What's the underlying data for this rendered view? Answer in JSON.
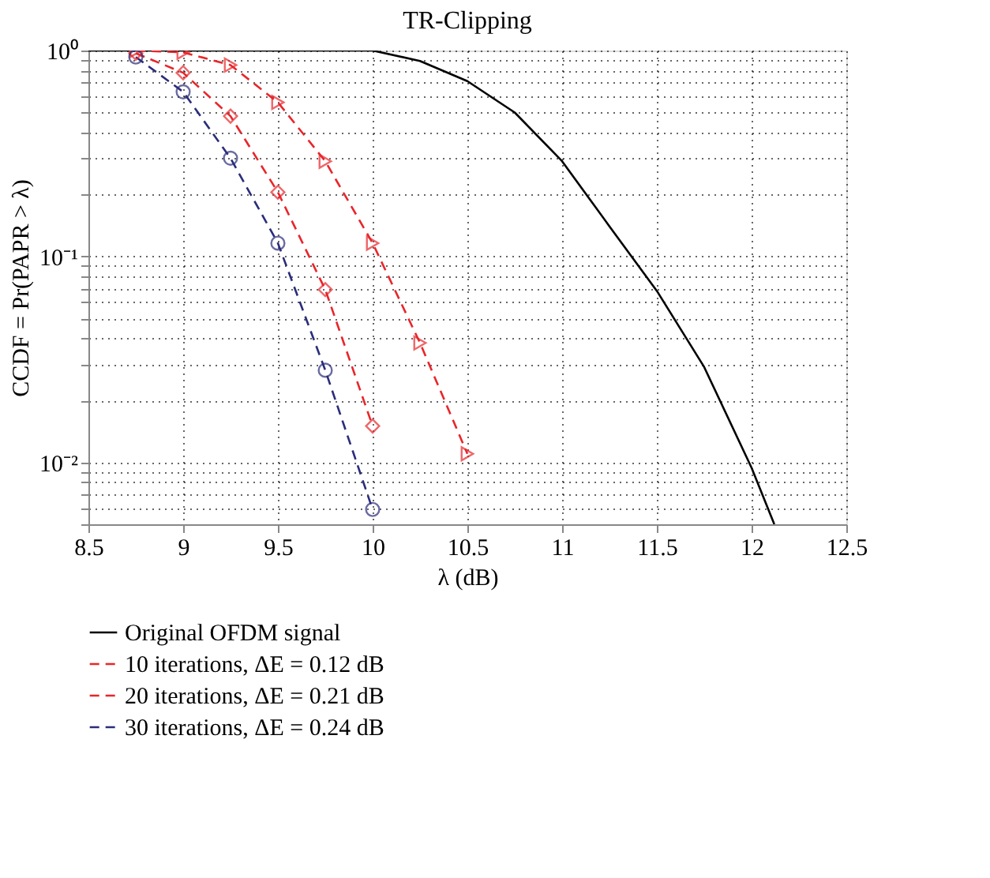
{
  "chart_data": {
    "type": "line",
    "title": "TR-Clipping",
    "xlabel": "λ (dB)",
    "ylabel": "CCDF = Pr(PAPR > λ)",
    "log": "y",
    "grid": true,
    "legend": "bottom",
    "xlim": [
      8.5,
      12.5
    ],
    "xticks": [
      8.5,
      9,
      9.5,
      10,
      10.5,
      11,
      11.5,
      12,
      12.5
    ],
    "ylim": [
      0.005,
      1
    ],
    "yticks": [
      {
        "value": 1,
        "label": "10⁰"
      },
      {
        "value": 0.9,
        "label": null
      },
      {
        "value": 0.8,
        "label": null
      },
      {
        "value": 0.7,
        "label": null
      },
      {
        "value": 0.6,
        "label": null
      },
      {
        "value": 0.5,
        "label": null
      },
      {
        "value": 0.4,
        "label": null
      },
      {
        "value": 0.3,
        "label": null
      },
      {
        "value": 0.2,
        "label": null
      },
      {
        "value": 0.1,
        "label": "10⁻¹"
      },
      {
        "value": 0.09,
        "label": null
      },
      {
        "value": 0.08,
        "label": null
      },
      {
        "value": 0.07,
        "label": null
      },
      {
        "value": 0.06,
        "label": null
      },
      {
        "value": 0.05,
        "label": null
      },
      {
        "value": 0.04,
        "label": null
      },
      {
        "value": 0.03,
        "label": null
      },
      {
        "value": 0.02,
        "label": null
      },
      {
        "value": 0.01,
        "label": "10⁻²"
      },
      {
        "value": 0.009,
        "label": null
      },
      {
        "value": 0.008,
        "label": null
      },
      {
        "value": 0.007,
        "label": null
      },
      {
        "value": 0.006,
        "label": null
      },
      {
        "value": 0.005,
        "label": null
      }
    ],
    "series": [
      {
        "name": "Original OFDM signal",
        "color": "#000000",
        "line_style": "solid",
        "marker": "none",
        "x": [
          8.5,
          9,
          9.5,
          10,
          10.25,
          10.5,
          10.75,
          11,
          11.25,
          11.5,
          11.75,
          12,
          12.12
        ],
        "values": [
          1,
          1,
          1,
          1,
          0.89,
          0.71,
          0.5,
          0.29,
          0.14,
          0.068,
          0.029,
          0.0094,
          0.005
        ]
      },
      {
        "name": "10 iterations, ΔE = 0.12 dB",
        "color": "#e8262b",
        "line_style": "dashed",
        "marker": "triangle",
        "x": [
          8.75,
          9,
          9.25,
          9.5,
          9.75,
          10,
          10.25,
          10.5
        ],
        "values": [
          1,
          0.98,
          0.85,
          0.56,
          0.29,
          0.116,
          0.038,
          0.011
        ]
      },
      {
        "name": "20 iterations, ΔE = 0.21 dB",
        "color": "#e8262b",
        "line_style": "dashed",
        "marker": "diamond",
        "x": [
          8.75,
          9,
          9.25,
          9.5,
          9.75,
          10
        ],
        "values": [
          0.97,
          0.78,
          0.48,
          0.205,
          0.069,
          0.015
        ]
      },
      {
        "name": "30 iterations, ΔE = 0.24 dB",
        "color": "#2b2d7a",
        "line_style": "dashed",
        "marker": "circle",
        "x": [
          8.75,
          9,
          9.25,
          9.5,
          9.75,
          10
        ],
        "values": [
          0.93,
          0.63,
          0.3,
          0.116,
          0.028,
          0.0059
        ]
      }
    ]
  }
}
